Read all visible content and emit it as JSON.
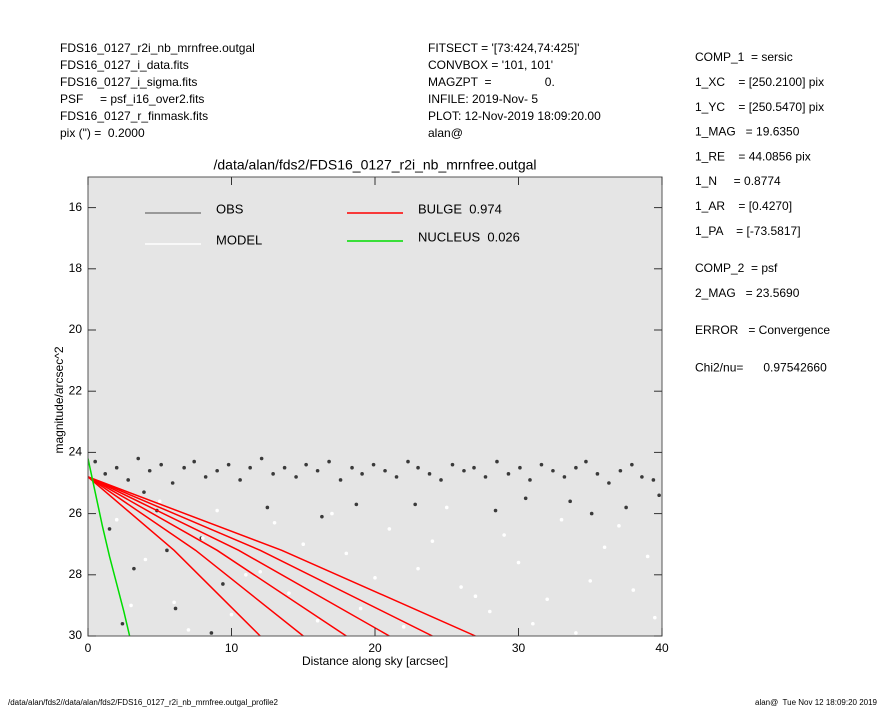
{
  "header_left": [
    "FDS16_0127_r2i_nb_mrnfree.outgal",
    "FDS16_0127_i_data.fits",
    "FDS16_0127_i_sigma.fits",
    "PSF     = psf_i16_over2.fits",
    "FDS16_0127_r_finmask.fits",
    "pix (\") =  0.2000"
  ],
  "header_middle": [
    "FITSECT = '[73:424,74:425]'",
    "CONVBOX = '101, 101'",
    "MAGZPT  =                0.",
    "INFILE: 2019-Nov- 5",
    "PLOT: 12-Nov-2019 18:09:20.00",
    "alan@"
  ],
  "params": [
    [
      "COMP_1  = sersic",
      "1_XC    = [250.2100] pix",
      "1_YC    = [250.5470] pix",
      "1_MAG   = 19.6350",
      "1_RE    = 44.0856 pix",
      "1_N     = 0.8774",
      "1_AR    = [0.4270]",
      "1_PA    = [-73.5817]"
    ],
    [
      "COMP_2  = psf",
      "2_MAG   = 23.5690"
    ],
    [
      "ERROR   = Convergence"
    ],
    [
      "Chi2/nu=      0.97542660"
    ]
  ],
  "footer_left": "/data/alan/fds2//data/alan/fds2/FDS16_0127_r2i_nb_mrnfree.outgal_profile2",
  "footer_right": "alan@  Tue Nov 12 18:09:20 2019",
  "chart_data": {
    "type": "scatter",
    "title": "/data/alan/fds2/FDS16_0127_r2i_nb_mrnfree.outgal",
    "x_label": "Distance along sky [arcsec]",
    "y_label": "magnitude/arcsec^2",
    "xlim": [
      0,
      40
    ],
    "xticks": [
      0,
      10,
      20,
      30,
      40
    ],
    "ylim": [
      15,
      30
    ],
    "y_inverted": true,
    "yticks": [
      16,
      18,
      20,
      22,
      24,
      26,
      28,
      30
    ],
    "series": [
      {
        "name": "OBS",
        "color": "#808080",
        "point_color": "#3a3a3a",
        "x": [
          0.5,
          1.2,
          2.0,
          2.8,
          3.5,
          4.3,
          5.1,
          5.9,
          6.7,
          7.4,
          8.2,
          9.0,
          9.8,
          10.6,
          11.3,
          12.1,
          12.9,
          13.7,
          14.5,
          15.2,
          16.0,
          16.8,
          17.6,
          18.4,
          19.1,
          19.9,
          20.7,
          21.5,
          22.3,
          23.0,
          23.8,
          24.6,
          25.4,
          26.2,
          26.9,
          27.7,
          28.5,
          29.3,
          30.1,
          30.8,
          31.6,
          32.4,
          33.2,
          34.0,
          34.7,
          35.5,
          36.3,
          37.1,
          37.9,
          38.6,
          39.4,
          1.5,
          3.2,
          4.8,
          6.1,
          7.9,
          9.4,
          2.4,
          5.5,
          12.5,
          16.3,
          22.8,
          28.4,
          33.6,
          37.5,
          39.8,
          35.1,
          30.5,
          18.7,
          8.6,
          3.9
        ],
        "values": [
          24.3,
          24.7,
          24.5,
          24.9,
          24.2,
          24.6,
          24.4,
          25.0,
          24.5,
          24.3,
          24.8,
          24.6,
          24.4,
          24.9,
          24.5,
          24.2,
          24.7,
          24.5,
          24.8,
          24.4,
          24.6,
          24.3,
          24.9,
          24.5,
          24.7,
          24.4,
          24.6,
          24.8,
          24.3,
          24.5,
          24.7,
          24.9,
          24.4,
          24.6,
          24.5,
          24.8,
          24.3,
          24.7,
          24.5,
          24.9,
          24.4,
          24.6,
          24.8,
          24.5,
          24.3,
          24.7,
          25.0,
          24.6,
          24.4,
          24.8,
          24.9,
          26.5,
          27.8,
          25.9,
          29.1,
          26.8,
          28.3,
          29.6,
          27.2,
          25.8,
          26.1,
          25.7,
          25.9,
          25.6,
          25.8,
          25.4,
          26.0,
          25.5,
          25.7,
          29.9,
          25.3
        ]
      },
      {
        "name": "MODEL",
        "color": "#ffffff",
        "point_color": "#ffffff",
        "x": [
          2,
          4,
          6,
          8,
          10,
          12,
          14,
          16,
          18,
          20,
          22,
          24,
          26,
          28,
          30,
          32,
          34,
          36,
          38,
          39.5,
          5,
          9,
          13,
          17,
          21,
          25,
          29,
          33,
          37,
          3,
          7,
          11,
          15,
          19,
          23,
          27,
          31,
          35,
          39
        ],
        "values": [
          26.2,
          27.5,
          28.9,
          26.8,
          29.3,
          27.9,
          28.6,
          29.5,
          27.3,
          28.1,
          29.7,
          26.9,
          28.4,
          29.2,
          27.6,
          28.8,
          29.9,
          27.1,
          28.5,
          29.4,
          25.6,
          25.9,
          26.3,
          26.0,
          26.5,
          25.8,
          26.7,
          26.2,
          26.4,
          29.0,
          29.8,
          28.0,
          27.0,
          29.1,
          27.8,
          28.7,
          29.6,
          28.2,
          27.4
        ]
      },
      {
        "name": "BULGE  0.974",
        "color": "#ff0000",
        "curves": [
          {
            "x": [
              0,
              6,
              12
            ],
            "values": [
              24.8,
              27.2,
              30
            ]
          },
          {
            "x": [
              0,
              7.5,
              15
            ],
            "values": [
              24.8,
              27.2,
              30
            ]
          },
          {
            "x": [
              0,
              9,
              18
            ],
            "values": [
              24.8,
              27.2,
              30
            ]
          },
          {
            "x": [
              0,
              10.5,
              21
            ],
            "values": [
              24.8,
              27.2,
              30
            ]
          },
          {
            "x": [
              0,
              12,
              24
            ],
            "values": [
              24.8,
              27.2,
              30
            ]
          },
          {
            "x": [
              0,
              13.5,
              27
            ],
            "values": [
              24.8,
              27.2,
              30
            ]
          }
        ]
      },
      {
        "name": "NUCLEUS  0.026",
        "color": "#00dd00",
        "curves": [
          {
            "x": [
              0,
              0.5,
              1,
              1.5,
              2,
              2.5,
              2.9
            ],
            "values": [
              24.2,
              25.3,
              26.4,
              27.4,
              28.3,
              29.2,
              30
            ]
          }
        ]
      }
    ]
  }
}
